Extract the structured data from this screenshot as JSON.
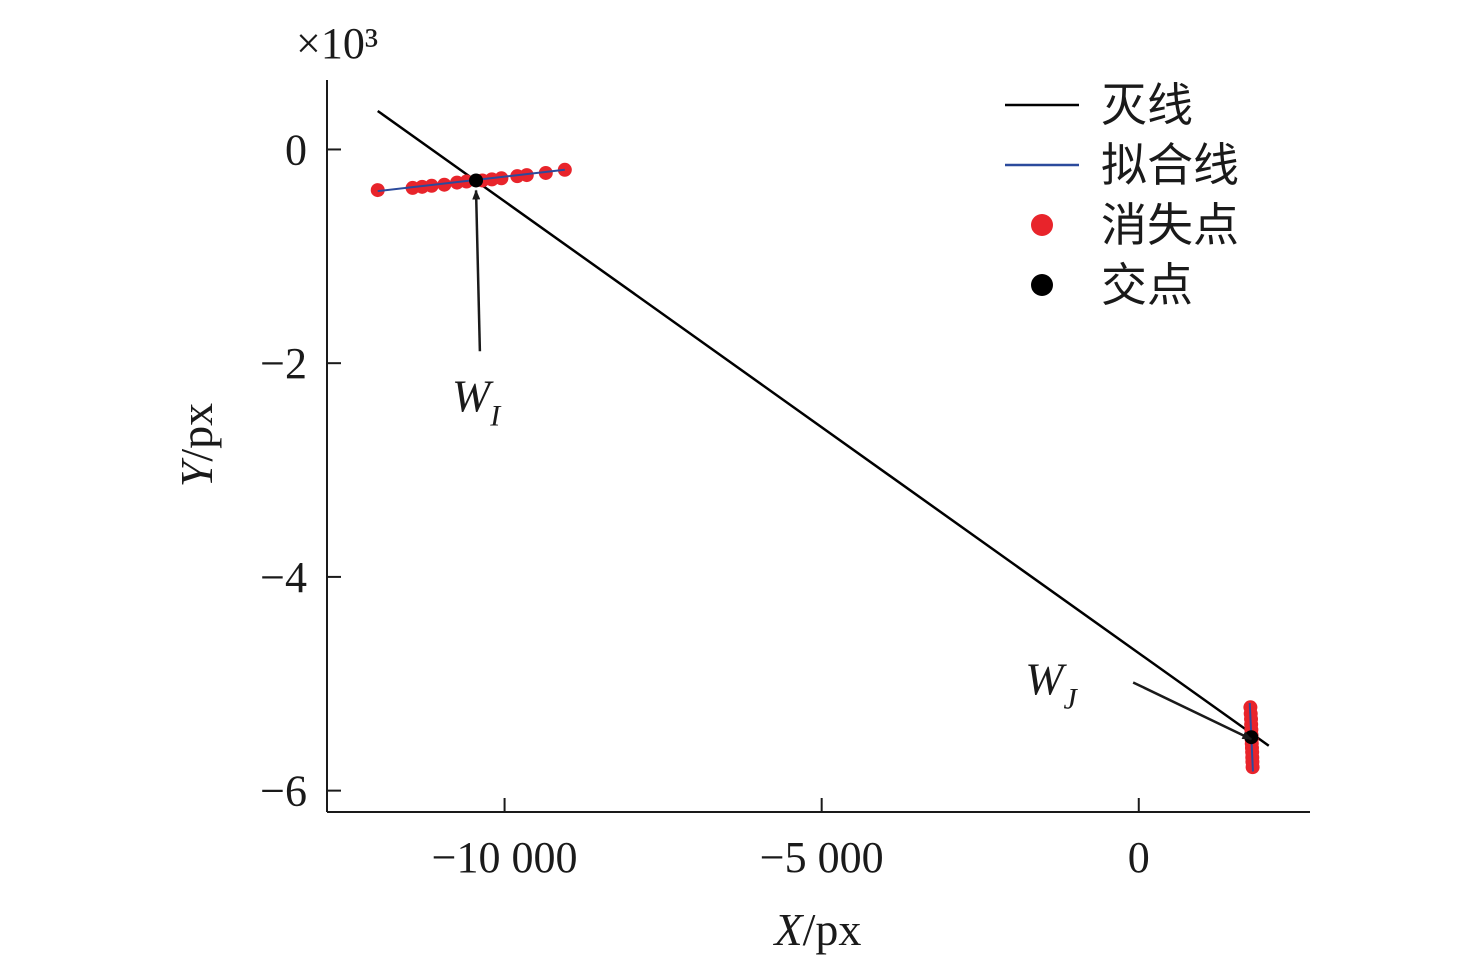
{
  "chart_data": {
    "type": "scatter",
    "title": "",
    "xlabel": "X/px",
    "ylabel": "Y/px",
    "y_multiplier_label": "×10³",
    "x_ticks": [
      -10000,
      -5000,
      0
    ],
    "x_tick_labels": [
      "−10 000",
      "−5 000",
      "0"
    ],
    "y_ticks": [
      0,
      -2,
      -4,
      -6
    ],
    "y_tick_labels": [
      "0",
      "−2",
      "−4",
      "−6"
    ],
    "xlim": [
      -12800,
      2700
    ],
    "ylim": [
      -6.2,
      0.65
    ],
    "grid": false,
    "legend_position": "top-right",
    "legend": [
      {
        "label": "灭线",
        "kind": "line",
        "color": "#000000"
      },
      {
        "label": "拟合线",
        "kind": "line",
        "color": "#2b4a9c"
      },
      {
        "label": "消失点",
        "kind": "marker",
        "color": "#e8242b"
      },
      {
        "label": "交点",
        "kind": "marker",
        "color": "#000000"
      }
    ],
    "series": [
      {
        "name": "灭线",
        "kind": "line",
        "color": "#000000",
        "x": [
          -12000,
          2050
        ],
        "y": [
          0.36,
          -5.58
        ]
      },
      {
        "name": "拟合线",
        "kind": "line",
        "color": "#2b4a9c",
        "segments": [
          {
            "x": [
              -12000,
              -9050
            ],
            "y": [
              -0.39,
              -0.19
            ]
          },
          {
            "x": [
              1750,
              1800
            ],
            "y": [
              -5.18,
              -5.82
            ]
          }
        ]
      },
      {
        "name": "消失点",
        "kind": "scatter",
        "color": "#e8242b",
        "x": [
          -12000,
          -11450,
          -11300,
          -11150,
          -10950,
          -10750,
          -10600,
          -10350,
          -10200,
          -10050,
          -9800,
          -9650,
          -9350,
          -9050,
          1760,
          1765,
          1770,
          1772,
          1775,
          1778,
          1780,
          1782,
          1785,
          1788,
          1790,
          1792,
          1795
        ],
        "y": [
          -0.38,
          -0.36,
          -0.35,
          -0.34,
          -0.33,
          -0.31,
          -0.3,
          -0.29,
          -0.28,
          -0.27,
          -0.25,
          -0.24,
          -0.22,
          -0.19,
          -5.22,
          -5.28,
          -5.33,
          -5.38,
          -5.43,
          -5.48,
          -5.52,
          -5.56,
          -5.6,
          -5.64,
          -5.69,
          -5.73,
          -5.78
        ]
      },
      {
        "name": "交点",
        "kind": "scatter",
        "color": "#000000",
        "x": [
          -10450,
          1775
        ],
        "y": [
          -0.29,
          -5.5
        ]
      }
    ],
    "annotations": [
      {
        "label": "W",
        "subscript": "I",
        "target_x": -10450,
        "target_y": -0.29,
        "text_x": -10200,
        "text_y": -2.45
      },
      {
        "label": "W",
        "subscript": "J",
        "target_x": 1775,
        "target_y": -5.5,
        "text_x": -1350,
        "text_y": -5.1
      }
    ]
  }
}
